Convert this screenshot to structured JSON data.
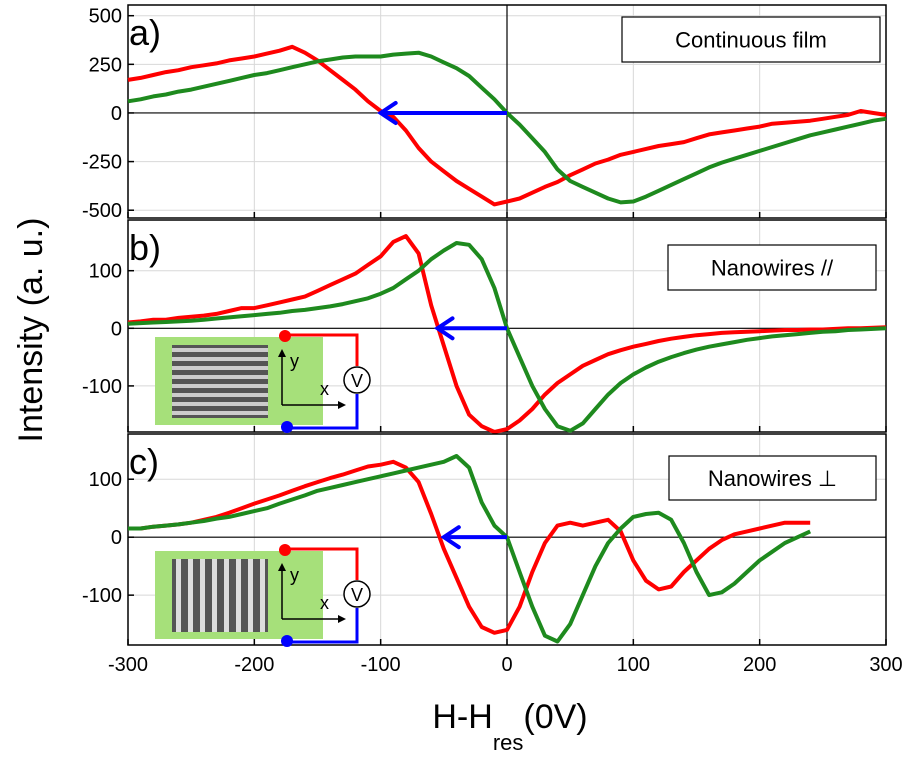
{
  "figure": {
    "y_label": "Intensity (a. u.)",
    "x_label_main": "H-H",
    "x_label_sub": "res",
    "x_label_suffix": "(0V)"
  },
  "chart_data": [
    {
      "type": "line",
      "panel_label": "a)",
      "box_label": "Continuous film",
      "xlim": [
        -300,
        300
      ],
      "xticks": [
        -300,
        -200,
        -100,
        0,
        100,
        200,
        300
      ],
      "ylim": [
        -540,
        555
      ],
      "yticks": [
        500,
        250,
        0,
        -250,
        -500
      ],
      "grid": true,
      "arrow": {
        "from": 0,
        "to": -100,
        "y": 0,
        "color": "#0000ff"
      },
      "x": [
        -300,
        -290,
        -280,
        -270,
        -260,
        -250,
        -240,
        -230,
        -220,
        -210,
        -200,
        -190,
        -180,
        -170,
        -160,
        -150,
        -140,
        -130,
        -120,
        -110,
        -100,
        -90,
        -80,
        -70,
        -60,
        -50,
        -40,
        -30,
        -20,
        -10,
        0,
        10,
        20,
        30,
        40,
        50,
        60,
        70,
        80,
        90,
        100,
        110,
        120,
        130,
        140,
        150,
        160,
        170,
        180,
        190,
        200,
        210,
        220,
        230,
        240,
        250,
        260,
        270,
        280,
        290,
        300
      ],
      "series": [
        {
          "color": "#ff0000",
          "values": [
            170,
            180,
            195,
            210,
            220,
            235,
            245,
            255,
            270,
            280,
            290,
            305,
            320,
            340,
            310,
            270,
            220,
            170,
            120,
            60,
            10,
            -20,
            -90,
            -180,
            -250,
            -300,
            -350,
            -390,
            -430,
            -470,
            -455,
            -440,
            -410,
            -380,
            -355,
            -320,
            -290,
            -260,
            -240,
            -215,
            -200,
            -185,
            -170,
            -160,
            -150,
            -130,
            -110,
            -100,
            -90,
            -80,
            -70,
            -55,
            -50,
            -45,
            -40,
            -30,
            -20,
            -10,
            10,
            0,
            -10
          ]
        },
        {
          "color": "#1e8a1e",
          "values": [
            60,
            70,
            85,
            95,
            110,
            120,
            135,
            150,
            165,
            180,
            195,
            205,
            220,
            235,
            250,
            265,
            275,
            285,
            290,
            290,
            290,
            300,
            305,
            310,
            290,
            260,
            230,
            190,
            130,
            70,
            0,
            -60,
            -130,
            -200,
            -290,
            -350,
            -380,
            -410,
            -440,
            -460,
            -455,
            -430,
            -400,
            -370,
            -340,
            -310,
            -280,
            -255,
            -235,
            -215,
            -195,
            -175,
            -155,
            -135,
            -115,
            -100,
            -85,
            -70,
            -55,
            -40,
            -30
          ]
        }
      ]
    },
    {
      "type": "line",
      "panel_label": "b)",
      "box_label": "Nanowires //",
      "xlim": [
        -300,
        300
      ],
      "xticks": [
        -300,
        -200,
        -100,
        0,
        100,
        200,
        300
      ],
      "ylim": [
        -180,
        188
      ],
      "yticks": [
        100,
        0,
        -100
      ],
      "grid": true,
      "arrow": {
        "from": 0,
        "to": -55,
        "y": 0,
        "color": "#0000ff"
      },
      "inset": {
        "axis_y": "y",
        "axis_x": "x",
        "meter": "V",
        "stripes": "horizontal"
      },
      "x": [
        -300,
        -290,
        -280,
        -270,
        -260,
        -250,
        -240,
        -230,
        -220,
        -210,
        -200,
        -190,
        -180,
        -170,
        -160,
        -150,
        -140,
        -130,
        -120,
        -110,
        -100,
        -90,
        -80,
        -70,
        -60,
        -50,
        -40,
        -30,
        -20,
        -10,
        0,
        10,
        20,
        30,
        40,
        50,
        60,
        70,
        80,
        90,
        100,
        110,
        120,
        130,
        140,
        150,
        160,
        170,
        180,
        190,
        200,
        210,
        220,
        230,
        240,
        250,
        260,
        270,
        280,
        290,
        300
      ],
      "series": [
        {
          "color": "#ff0000",
          "values": [
            10,
            12,
            15,
            15,
            18,
            20,
            22,
            25,
            30,
            35,
            35,
            40,
            45,
            50,
            55,
            65,
            75,
            85,
            95,
            110,
            125,
            150,
            160,
            130,
            40,
            -30,
            -100,
            -150,
            -170,
            -180,
            -175,
            -160,
            -140,
            -115,
            -95,
            -80,
            -65,
            -55,
            -45,
            -38,
            -32,
            -27,
            -22,
            -18,
            -15,
            -12,
            -10,
            -8,
            -7,
            -6,
            -5,
            -4,
            -3,
            -3,
            -2,
            -2,
            -1,
            0,
            0,
            1,
            2
          ]
        },
        {
          "color": "#1e8a1e",
          "values": [
            8,
            9,
            10,
            11,
            12,
            13,
            15,
            17,
            19,
            21,
            23,
            25,
            27,
            30,
            32,
            35,
            38,
            42,
            47,
            52,
            60,
            70,
            85,
            100,
            120,
            135,
            148,
            145,
            120,
            70,
            0,
            -50,
            -100,
            -140,
            -170,
            -178,
            -165,
            -140,
            -115,
            -95,
            -80,
            -68,
            -58,
            -50,
            -43,
            -37,
            -32,
            -28,
            -24,
            -20,
            -17,
            -14,
            -12,
            -10,
            -8,
            -6,
            -5,
            -3,
            -2,
            -1,
            0
          ]
        }
      ]
    },
    {
      "type": "line",
      "panel_label": "c)",
      "box_label": "Nanowires ⊥",
      "xlim": [
        -300,
        300
      ],
      "xticks": [
        -300,
        -200,
        -100,
        0,
        100,
        200,
        300
      ],
      "ylim": [
        -186,
        178
      ],
      "yticks": [
        100,
        0,
        -100
      ],
      "grid": true,
      "arrow": {
        "from": 0,
        "to": -50,
        "y": 0,
        "color": "#0000ff"
      },
      "inset": {
        "axis_y": "y",
        "axis_x": "x",
        "meter": "V",
        "stripes": "vertical"
      },
      "x": [
        -300,
        -290,
        -280,
        -270,
        -260,
        -250,
        -240,
        -230,
        -220,
        -210,
        -200,
        -190,
        -180,
        -170,
        -160,
        -150,
        -140,
        -130,
        -120,
        -110,
        -100,
        -90,
        -80,
        -70,
        -60,
        -50,
        -40,
        -30,
        -20,
        -10,
        0,
        10,
        20,
        30,
        40,
        50,
        60,
        70,
        80,
        90,
        100,
        110,
        120,
        130,
        140,
        150,
        160,
        170,
        180,
        190,
        200,
        210,
        220,
        230,
        240,
        250,
        260,
        270,
        280,
        290,
        300
      ],
      "series": [
        {
          "color": "#ff0000",
          "values": [
            15,
            15,
            18,
            20,
            22,
            25,
            30,
            35,
            42,
            50,
            58,
            65,
            72,
            80,
            88,
            95,
            102,
            108,
            115,
            122,
            125,
            130,
            120,
            95,
            40,
            -20,
            -70,
            -120,
            -155,
            -165,
            -160,
            -120,
            -60,
            -10,
            20,
            25,
            20,
            25,
            30,
            10,
            -40,
            -75,
            -90,
            -85,
            -60,
            -40,
            -20,
            -5,
            5,
            10,
            15,
            20,
            25,
            25,
            25,
            null,
            null,
            null,
            null,
            null,
            null
          ]
        },
        {
          "color": "#1e8a1e",
          "values": [
            15,
            15,
            18,
            20,
            22,
            25,
            28,
            32,
            35,
            40,
            45,
            50,
            58,
            65,
            72,
            80,
            85,
            90,
            95,
            100,
            105,
            110,
            115,
            120,
            125,
            130,
            140,
            120,
            60,
            20,
            0,
            -60,
            -120,
            -170,
            -180,
            -150,
            -100,
            -50,
            -10,
            15,
            35,
            40,
            42,
            30,
            -10,
            -60,
            -100,
            -95,
            -80,
            -60,
            -40,
            -25,
            -10,
            0,
            10,
            null,
            null,
            null,
            null,
            null,
            null
          ]
        }
      ]
    }
  ]
}
